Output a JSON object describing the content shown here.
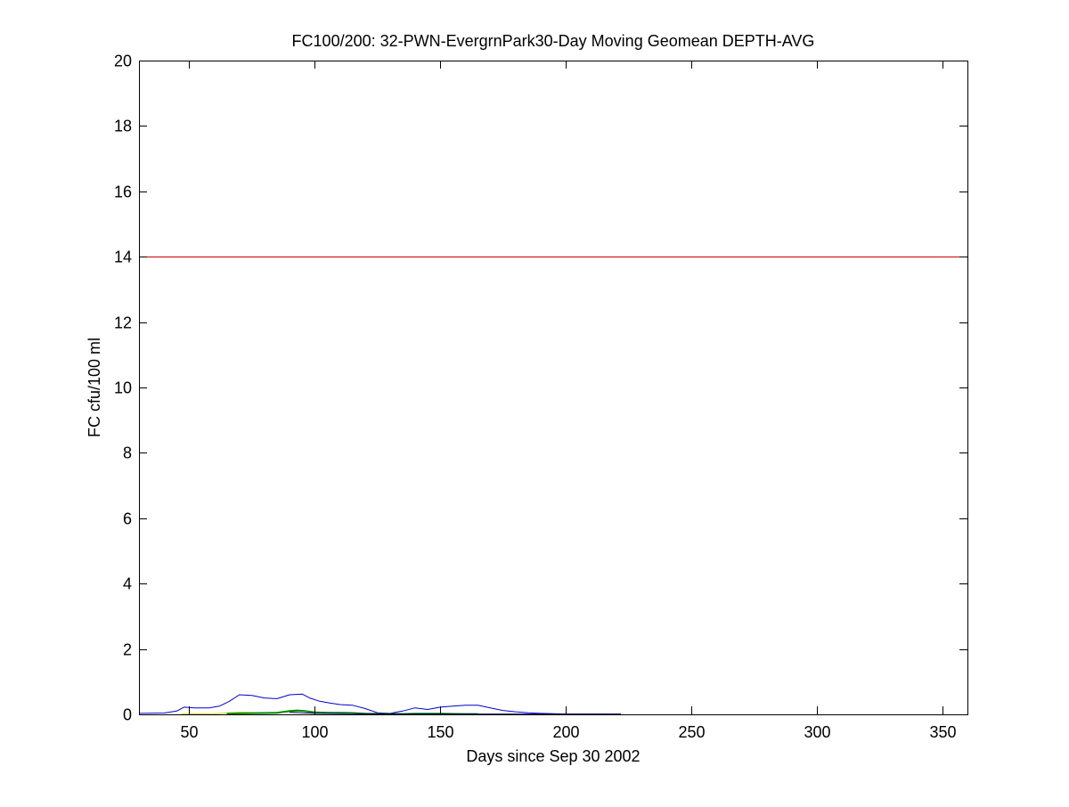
{
  "chart_data": {
    "type": "line",
    "title": "FC100/200: 32-PWN-EvergrnPark30-Day Moving Geomean DEPTH-AVG",
    "xlabel": "Days since Sep 30 2002",
    "ylabel": "FC cfu/100 ml",
    "xlim": [
      30,
      360
    ],
    "ylim": [
      0,
      20
    ],
    "xticks": [
      50,
      100,
      150,
      200,
      250,
      300,
      350
    ],
    "yticks": [
      0,
      2,
      4,
      6,
      8,
      10,
      12,
      14,
      16,
      18,
      20
    ],
    "grid": false,
    "legend": "none",
    "threshold": {
      "value": 14,
      "color": "#cc0000"
    },
    "series": [
      {
        "color": "#0000cc",
        "x": [
          30,
          40,
          45,
          48,
          52,
          58,
          62,
          66,
          70,
          75,
          80,
          85,
          90,
          95,
          98,
          102,
          106,
          110,
          115,
          120,
          125,
          130,
          135,
          140,
          145,
          150,
          155,
          160,
          165,
          170,
          175,
          180,
          185,
          190,
          195,
          200,
          210,
          222
        ],
        "y": [
          0.03,
          0.04,
          0.1,
          0.22,
          0.2,
          0.2,
          0.25,
          0.4,
          0.6,
          0.58,
          0.5,
          0.48,
          0.6,
          0.62,
          0.5,
          0.4,
          0.35,
          0.3,
          0.28,
          0.18,
          0.05,
          0.03,
          0.1,
          0.2,
          0.15,
          0.22,
          0.25,
          0.28,
          0.28,
          0.2,
          0.12,
          0.08,
          0.05,
          0.03,
          0.02,
          0.01,
          0.01,
          0.01
        ]
      },
      {
        "color": "#cccc00",
        "x": [
          47,
          60,
          65,
          70,
          80,
          85,
          90,
          95,
          100,
          105,
          110,
          115,
          120
        ],
        "y": [
          0.01,
          0.02,
          0.04,
          0.06,
          0.05,
          0.06,
          0.08,
          0.1,
          0.08,
          0.06,
          0.05,
          0.04,
          0.02
        ]
      },
      {
        "color": "#008800",
        "x": [
          65,
          70,
          80,
          85,
          90,
          93,
          96,
          100,
          105,
          110,
          115,
          120,
          135,
          140,
          150,
          160,
          165
        ],
        "y": [
          0.02,
          0.03,
          0.04,
          0.05,
          0.1,
          0.12,
          0.1,
          0.06,
          0.05,
          0.05,
          0.04,
          0.02,
          0.01,
          0.02,
          0.02,
          0.01,
          0.01
        ]
      },
      {
        "color": "#000066",
        "x": [
          90,
          95,
          100,
          120,
          135,
          160,
          200,
          222
        ],
        "y": [
          0.06,
          0.05,
          0.03,
          0.02,
          0.01,
          0.01,
          0.005,
          0.005
        ]
      }
    ]
  }
}
